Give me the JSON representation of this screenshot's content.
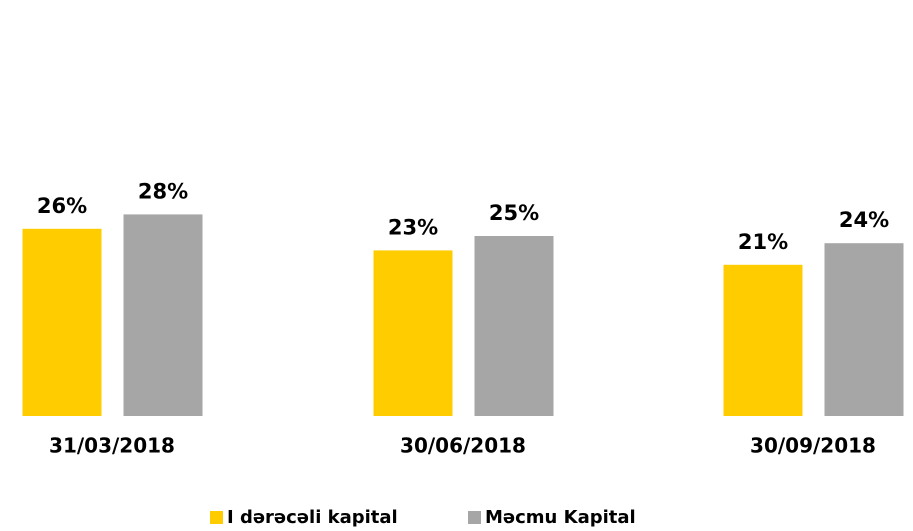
{
  "chart_data": {
    "type": "bar",
    "categories": [
      "31/03/2018",
      "30/06/2018",
      "30/09/2018"
    ],
    "series": [
      {
        "name": "I dərəcəli kapital",
        "color": "#ffcc00",
        "values": [
          26,
          23,
          21
        ],
        "value_labels": [
          "26%",
          "23%",
          "21%"
        ]
      },
      {
        "name": "Məcmu Kapital",
        "color": "#a6a6a6",
        "values": [
          28,
          25,
          24
        ],
        "value_labels": [
          "28%",
          "25%",
          "24%"
        ]
      }
    ]
  }
}
